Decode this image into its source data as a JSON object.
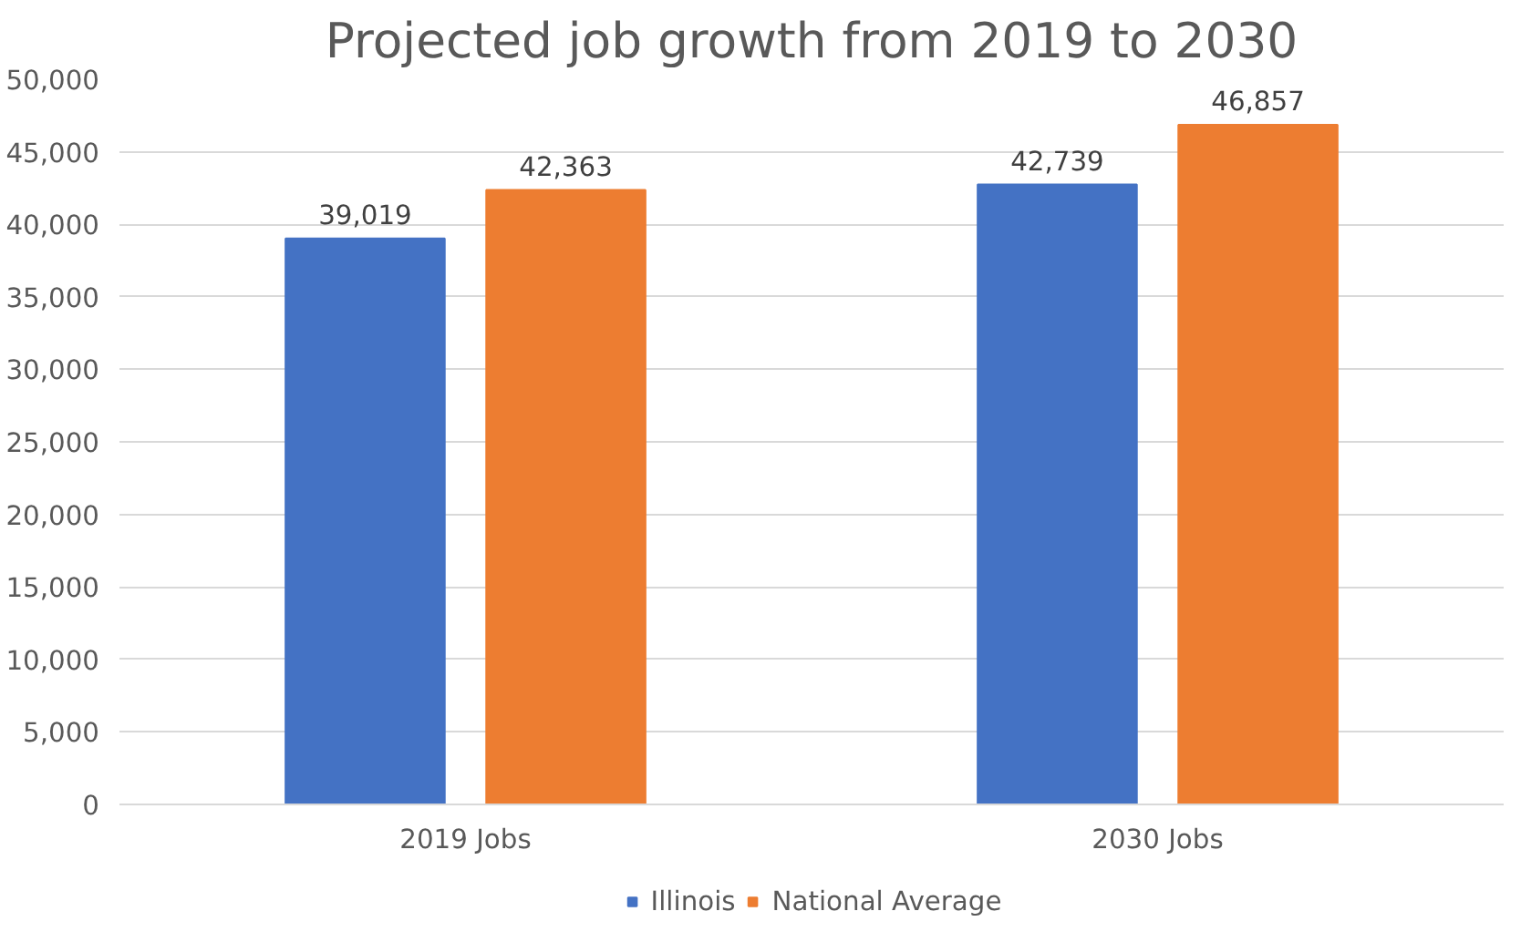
{
  "chart_data": {
    "type": "bar",
    "title": "Projected job growth from 2019 to 2030",
    "categories": [
      "2019 Jobs",
      "2030 Jobs"
    ],
    "series": [
      {
        "name": "Illinois",
        "color": "#4472c4",
        "values": [
          39019,
          42739
        ],
        "value_labels": [
          "39,019",
          "42,739"
        ]
      },
      {
        "name": "National Average",
        "color": "#ed7d31",
        "values": [
          42363,
          46857
        ],
        "value_labels": [
          "42,363",
          "46,857"
        ]
      }
    ],
    "ylim": [
      0,
      50000
    ],
    "yticks": [
      {
        "value": 0,
        "label": "0"
      },
      {
        "value": 5000,
        "label": "5,000"
      },
      {
        "value": 10000,
        "label": "10,000"
      },
      {
        "value": 15000,
        "label": "15,000"
      },
      {
        "value": 20000,
        "label": "20,000"
      },
      {
        "value": 25000,
        "label": "25,000"
      },
      {
        "value": 30000,
        "label": "30,000"
      },
      {
        "value": 35000,
        "label": "35,000"
      },
      {
        "value": 40000,
        "label": "40,000"
      },
      {
        "value": 45000,
        "label": "45,000"
      },
      {
        "value": 50000,
        "label": "50,000"
      }
    ],
    "grid": "y",
    "legend": "bottom"
  }
}
